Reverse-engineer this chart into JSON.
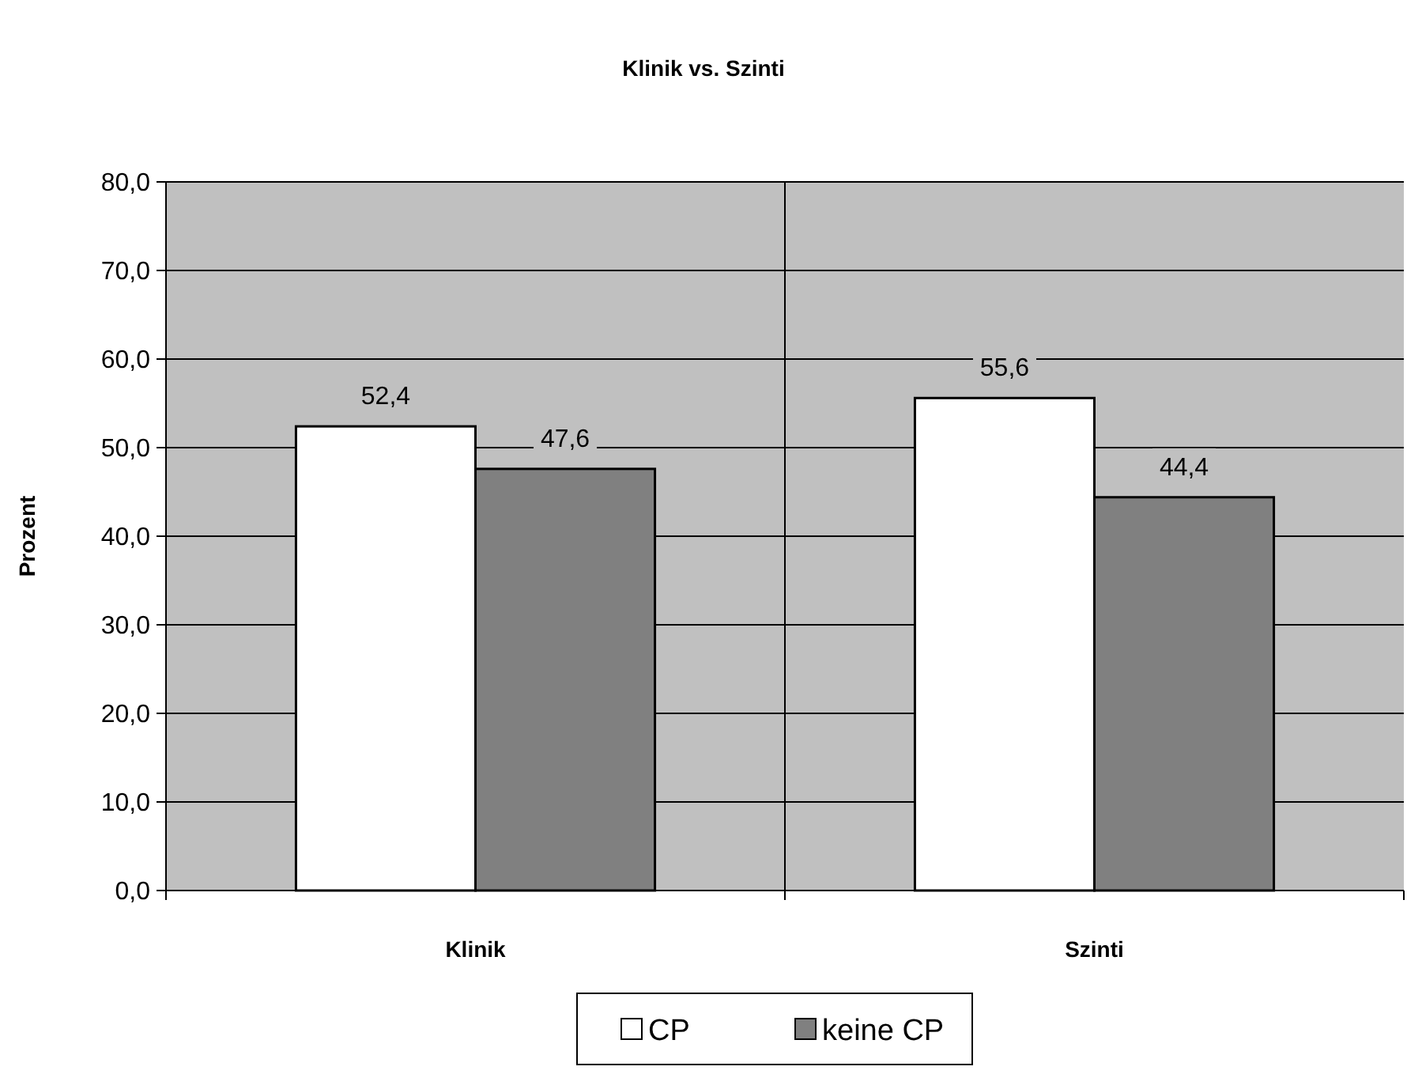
{
  "chart_data": {
    "type": "bar",
    "title": "Klinik vs. Szinti",
    "ylabel": "Prozent",
    "categories": [
      "Klinik",
      "Szinti"
    ],
    "series": [
      {
        "name": "CP",
        "color": "#ffffff",
        "values": [
          52.4,
          55.6
        ],
        "value_labels": [
          "52,4",
          "55,6"
        ]
      },
      {
        "name": "keine CP",
        "color": "#808080",
        "values": [
          47.6,
          44.4
        ],
        "value_labels": [
          "47,6",
          "44,4"
        ]
      }
    ],
    "ylim": [
      0,
      80
    ],
    "yticks": [
      {
        "value": 0,
        "label": "0,0"
      },
      {
        "value": 10,
        "label": "10,0"
      },
      {
        "value": 20,
        "label": "20,0"
      },
      {
        "value": 30,
        "label": "30,0"
      },
      {
        "value": 40,
        "label": "40,0"
      },
      {
        "value": 50,
        "label": "50,0"
      },
      {
        "value": 60,
        "label": "60,0"
      },
      {
        "value": 70,
        "label": "70,0"
      },
      {
        "value": 80,
        "label": "80,0"
      }
    ],
    "grid": true,
    "legend": "bottom"
  }
}
